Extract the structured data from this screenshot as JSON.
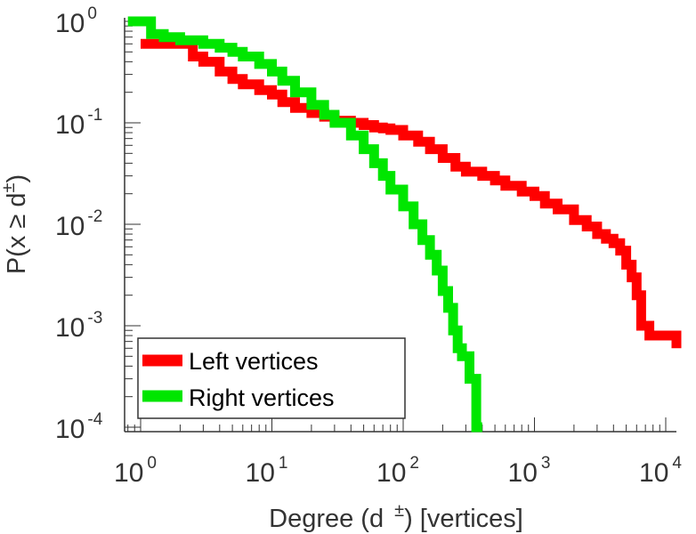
{
  "colors": {
    "left_series": "#ff0000",
    "right_series": "#00e600",
    "axis": "#333333",
    "legend_border": "#333333"
  },
  "chart_data": {
    "type": "line",
    "step": true,
    "xscale": "log",
    "yscale": "log",
    "xlim": [
      0.8,
      15000
    ],
    "ylim": [
      0.0001,
      1
    ],
    "grid": false,
    "legend_position": "bottom-left",
    "xlabel": {
      "prefix": "Degree (d",
      "superscript": "±",
      "suffix": ") [vertices]"
    },
    "ylabel": {
      "prefix": "P(x ≥ d",
      "superscript": "±",
      "suffix": ")"
    },
    "xticks": [
      {
        "base": "10",
        "exp": "0"
      },
      {
        "base": "10",
        "exp": "1"
      },
      {
        "base": "10",
        "exp": "2"
      },
      {
        "base": "10",
        "exp": "3"
      },
      {
        "base": "10",
        "exp": "4"
      }
    ],
    "yticks": [
      {
        "base": "10",
        "exp": "0"
      },
      {
        "base": "10",
        "exp": "-1"
      },
      {
        "base": "10",
        "exp": "-2"
      },
      {
        "base": "10",
        "exp": "-3"
      },
      {
        "base": "10",
        "exp": "-4"
      }
    ],
    "series": [
      {
        "name": "Left vertices",
        "color": "#ff0000",
        "x": [
          1,
          2,
          2.5,
          3,
          4,
          5,
          6,
          8,
          10,
          12,
          15,
          20,
          25,
          30,
          40,
          50,
          60,
          70,
          80,
          100,
          130,
          160,
          200,
          250,
          300,
          400,
          500,
          600,
          800,
          1000,
          1200,
          1500,
          2000,
          2500,
          3000,
          3500,
          4000,
          4500,
          5000,
          5500,
          6000,
          6500,
          7500,
          9000,
          11000,
          13000
        ],
        "y": [
          0.6,
          0.6,
          0.45,
          0.4,
          0.32,
          0.27,
          0.24,
          0.21,
          0.19,
          0.16,
          0.14,
          0.125,
          0.115,
          0.105,
          0.1,
          0.095,
          0.09,
          0.088,
          0.085,
          0.075,
          0.065,
          0.055,
          0.045,
          0.037,
          0.033,
          0.03,
          0.027,
          0.024,
          0.021,
          0.019,
          0.016,
          0.014,
          0.011,
          0.0095,
          0.008,
          0.0072,
          0.0065,
          0.0055,
          0.004,
          0.003,
          0.002,
          0.001,
          0.0008,
          0.0008,
          0.0008,
          0.0006
        ]
      },
      {
        "name": "Right vertices",
        "color": "#00e600",
        "x": [
          0.8,
          1,
          1.2,
          1.5,
          2,
          3,
          4,
          5,
          6,
          8,
          10,
          12,
          15,
          20,
          25,
          30,
          40,
          50,
          60,
          70,
          80,
          100,
          120,
          140,
          160,
          180,
          200,
          220,
          240,
          260,
          280,
          320,
          360,
          400
        ],
        "y": [
          1,
          1,
          0.75,
          0.7,
          0.65,
          0.6,
          0.55,
          0.5,
          0.45,
          0.38,
          0.32,
          0.26,
          0.2,
          0.15,
          0.12,
          0.1,
          0.075,
          0.055,
          0.04,
          0.03,
          0.022,
          0.015,
          0.01,
          0.007,
          0.005,
          0.0035,
          0.0022,
          0.0015,
          0.0009,
          0.0006,
          0.0005,
          0.0003,
          0.0001,
          0.0001
        ]
      }
    ]
  }
}
